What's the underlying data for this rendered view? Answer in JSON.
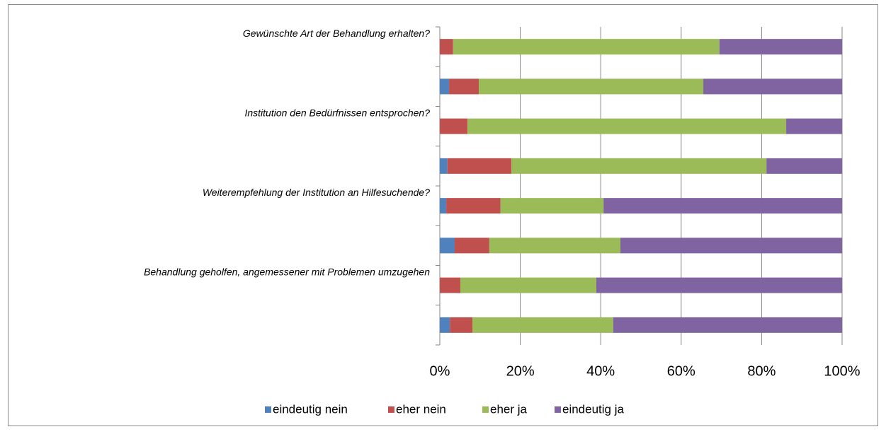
{
  "chart_data": {
    "type": "stacked_barh",
    "categories": [
      "Gewünschte Art der Behandlung erhalten?",
      null,
      "Institution den Bedürfnissen entsprochen?",
      null,
      "Weiterempfehlung der Institution an Hilfesuchende?",
      null,
      "Behandlung geholfen, angemessener mit Problemen umzugehen",
      null
    ],
    "series": [
      {
        "name": "eindeutig nein",
        "color": "#4f81bd",
        "values": [
          0,
          2.3,
          0,
          1.9,
          1.6,
          3.7,
          0,
          2.5
        ]
      },
      {
        "name": "eher nein",
        "color": "#c0504d",
        "values": [
          3.3,
          7.4,
          6.9,
          15.9,
          13.5,
          8.6,
          5.1,
          5.6
        ]
      },
      {
        "name": "eher ja",
        "color": "#9bbb59",
        "values": [
          66.2,
          55.8,
          79.2,
          63.4,
          25.6,
          32.6,
          33.8,
          35.0
        ]
      },
      {
        "name": "eindeutig ja",
        "color": "#8064a2",
        "values": [
          30.5,
          34.5,
          13.9,
          18.8,
          59.3,
          55.1,
          61.1,
          56.9
        ]
      }
    ],
    "xlim": [
      0,
      100
    ],
    "xticks": [
      {
        "value": 0,
        "label": "0%"
      },
      {
        "value": 20,
        "label": "20%"
      },
      {
        "value": 40,
        "label": "40%"
      },
      {
        "value": 60,
        "label": "60%"
      },
      {
        "value": 80,
        "label": "80%"
      },
      {
        "value": 100,
        "label": "100%"
      }
    ],
    "grid": true,
    "legend": "bottom"
  }
}
